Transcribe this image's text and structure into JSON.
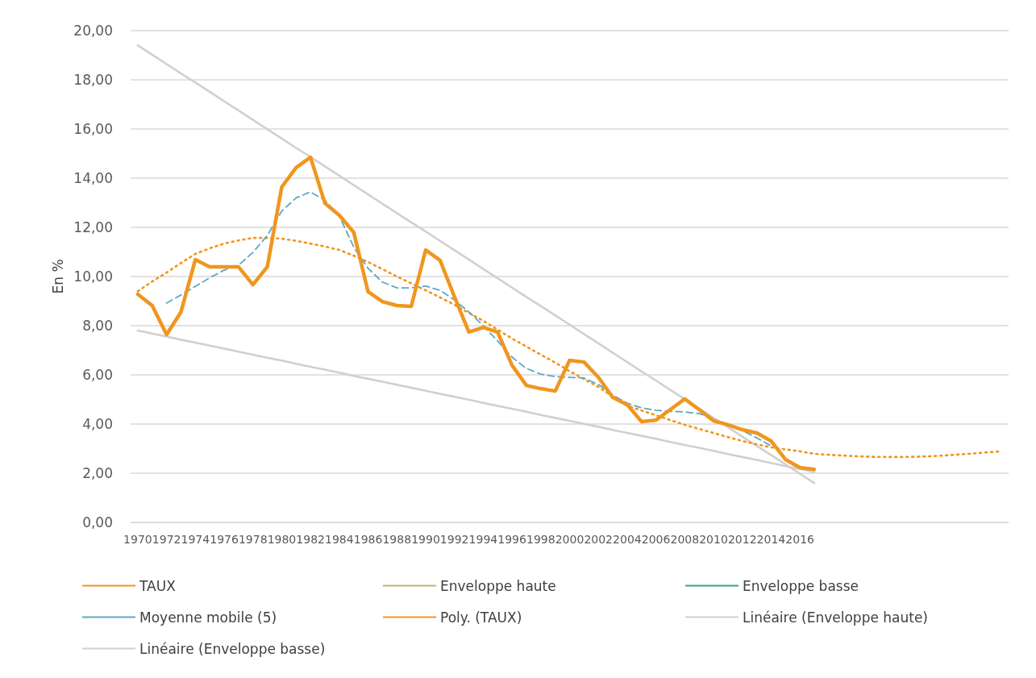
{
  "chart_data": {
    "type": "line",
    "ylabel": "En %",
    "legend": "bottom",
    "grid": "y",
    "marker": "none",
    "ylim": [
      0,
      20
    ],
    "yticks": [
      {
        "value": 0,
        "label": "0,00"
      },
      {
        "value": 2,
        "label": "2,00"
      },
      {
        "value": 4,
        "label": "4,00"
      },
      {
        "value": 6,
        "label": "6,00"
      },
      {
        "value": 8,
        "label": "8,00"
      },
      {
        "value": 10,
        "label": "10,00"
      },
      {
        "value": 12,
        "label": "12,00"
      },
      {
        "value": 14,
        "label": "14,00"
      },
      {
        "value": 16,
        "label": "16,00"
      },
      {
        "value": 18,
        "label": "18,00"
      },
      {
        "value": 20,
        "label": "20,00"
      }
    ],
    "categories": [
      "1970",
      null,
      "1972",
      null,
      "1974",
      null,
      "1976",
      null,
      "1978",
      null,
      "1980",
      null,
      "1982",
      null,
      "1984",
      null,
      "1986",
      null,
      "1988",
      null,
      "1990",
      null,
      "1992",
      null,
      "1994",
      null,
      "1996",
      null,
      "1998",
      null,
      "2000",
      null,
      "2002",
      null,
      "2004",
      null,
      "2006",
      null,
      "2008",
      null,
      "2010",
      null,
      "2012",
      null,
      "2014",
      null,
      "2016",
      null,
      null,
      null,
      null,
      null,
      null,
      null,
      null,
      null,
      null,
      null,
      null,
      null,
      null
    ],
    "series": [
      {
        "name": "TAUX",
        "color": "#f0961e",
        "line_style": "solid",
        "values": [
          9.28,
          8.82,
          7.64,
          8.56,
          10.69,
          10.39,
          10.39,
          10.39,
          9.67,
          10.4,
          13.64,
          14.43,
          14.85,
          12.98,
          12.49,
          11.8,
          9.38,
          8.98,
          8.82,
          8.79,
          11.08,
          10.66,
          9.18,
          7.74,
          7.93,
          7.74,
          6.39,
          5.57,
          5.44,
          5.34,
          6.59,
          6.52,
          5.9,
          5.08,
          4.79,
          4.1,
          4.16,
          4.59,
          5.02,
          4.59,
          4.13,
          3.97,
          3.77,
          3.64,
          3.31,
          2.56,
          2.23,
          2.16,
          null,
          null,
          null,
          null,
          null,
          null,
          null,
          null,
          null,
          null,
          null,
          null,
          null
        ]
      },
      {
        "name": "Enveloppe haute",
        "color": "#c2b46b",
        "line_style": "solid",
        "values": [
          null,
          null,
          null,
          null,
          null,
          null,
          null,
          null,
          null,
          null,
          null,
          null,
          null,
          null,
          null,
          null,
          null,
          null,
          null,
          null,
          null,
          null,
          null,
          null,
          null,
          null,
          null,
          null,
          null,
          null,
          null,
          null,
          null,
          null,
          null,
          null,
          null,
          null,
          null,
          null,
          null,
          null,
          null,
          null,
          null,
          null,
          null,
          null,
          null,
          null,
          null,
          null,
          null,
          null,
          null,
          null,
          null,
          null,
          null,
          null,
          null
        ]
      },
      {
        "name": "Enveloppe basse",
        "color": "#3aa874",
        "line_style": "solid",
        "values": [
          null,
          null,
          null,
          null,
          null,
          null,
          null,
          null,
          null,
          null,
          null,
          null,
          null,
          null,
          null,
          null,
          null,
          null,
          null,
          null,
          null,
          null,
          null,
          null,
          null,
          null,
          null,
          null,
          null,
          null,
          null,
          null,
          null,
          null,
          null,
          null,
          null,
          null,
          null,
          null,
          null,
          null,
          null,
          null,
          null,
          null,
          null,
          null,
          null,
          null,
          null,
          null,
          null,
          null,
          null,
          null,
          null,
          null,
          null,
          null,
          null
        ]
      },
      {
        "name": "Moyenne mobile (5)",
        "color": "#5aa8c6",
        "line_style": "dashed",
        "values": [
          null,
          null,
          8.92,
          9.25,
          9.6,
          9.95,
          10.26,
          10.46,
          10.98,
          11.67,
          12.66,
          13.2,
          13.44,
          13.1,
          12.46,
          11.2,
          10.33,
          9.77,
          9.54,
          9.54,
          9.61,
          9.44,
          9.05,
          8.56,
          8.0,
          7.38,
          6.72,
          6.26,
          6.03,
          5.93,
          5.9,
          5.87,
          5.61,
          5.18,
          4.85,
          4.66,
          4.56,
          4.52,
          4.49,
          4.43,
          4.2,
          3.97,
          3.74,
          3.44,
          3.11,
          null,
          null,
          null,
          null,
          null,
          null,
          null,
          null,
          null,
          null,
          null,
          null,
          null,
          null,
          null,
          null
        ]
      },
      {
        "name": "Poly. (TAUX)",
        "color": "#f0961e",
        "line_style": "dotted",
        "values": [
          9.4,
          9.8,
          10.16,
          10.55,
          10.92,
          11.15,
          11.34,
          11.47,
          11.57,
          11.57,
          11.54,
          11.45,
          11.34,
          11.22,
          11.08,
          10.85,
          10.59,
          10.3,
          10.0,
          9.72,
          9.44,
          9.15,
          8.85,
          8.52,
          8.2,
          7.84,
          7.48,
          7.15,
          6.82,
          6.5,
          6.15,
          5.83,
          5.51,
          5.12,
          4.75,
          4.55,
          4.36,
          4.16,
          3.97,
          3.8,
          3.64,
          3.47,
          3.31,
          3.18,
          3.05,
          2.97,
          2.89,
          2.79,
          2.75,
          2.72,
          2.69,
          2.67,
          2.66,
          2.66,
          2.67,
          2.69,
          2.72,
          2.76,
          2.8,
          2.85,
          2.89
        ]
      },
      {
        "name": "Linéaire (Enveloppe haute)",
        "color": "#d0d0d0",
        "line_style": "solid",
        "values": [
          19.4,
          19.02,
          18.64,
          18.26,
          17.89,
          17.51,
          17.13,
          16.75,
          16.37,
          15.99,
          15.61,
          15.23,
          14.86,
          14.48,
          14.1,
          13.72,
          13.34,
          12.96,
          12.58,
          12.2,
          11.83,
          11.45,
          11.07,
          10.69,
          10.31,
          9.93,
          9.55,
          9.17,
          8.8,
          8.42,
          8.04,
          7.66,
          7.28,
          6.9,
          6.52,
          6.14,
          5.77,
          5.39,
          5.01,
          4.63,
          4.25,
          3.87,
          3.49,
          3.11,
          2.74,
          2.36,
          1.98,
          1.6,
          null,
          null,
          null,
          null,
          null,
          null,
          null,
          null,
          null,
          null,
          null,
          null,
          null
        ]
      },
      {
        "name": "Linéaire (Enveloppe basse)",
        "color": "#d0d0d0",
        "line_style": "solid",
        "values": [
          7.8,
          7.68,
          7.56,
          7.43,
          7.31,
          7.19,
          7.07,
          6.94,
          6.82,
          6.7,
          6.58,
          6.45,
          6.33,
          6.21,
          6.09,
          5.96,
          5.84,
          5.72,
          5.6,
          5.48,
          5.35,
          5.23,
          5.11,
          4.99,
          4.86,
          4.74,
          4.62,
          4.5,
          4.37,
          4.25,
          4.13,
          4.01,
          3.89,
          3.76,
          3.64,
          3.52,
          3.4,
          3.27,
          3.15,
          3.03,
          2.91,
          2.78,
          2.66,
          2.54,
          2.42,
          2.29,
          2.17,
          2.05,
          null,
          null,
          null,
          null,
          null,
          null,
          null,
          null,
          null,
          null,
          null,
          null,
          null
        ]
      }
    ]
  }
}
